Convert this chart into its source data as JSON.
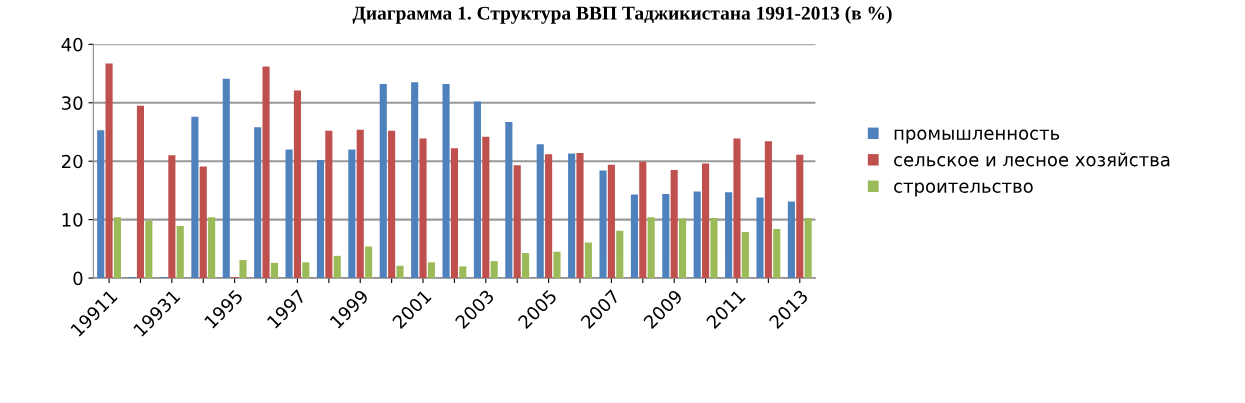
{
  "chart_data": {
    "type": "bar",
    "title": "Диаграмма 1. Структура ВВП Таджикистана 1991-2013 (в %)",
    "categories": [
      "19911",
      null,
      "19931",
      null,
      "1995",
      null,
      "1997",
      null,
      "1999",
      null,
      "2001",
      null,
      "2003",
      null,
      "2005",
      null,
      "2007",
      null,
      "2009",
      null,
      "2011",
      null,
      "2013"
    ],
    "series": [
      {
        "name": "промышленность",
        "color": "#4f81bd",
        "values": [
          25.3,
          0.2,
          0.2,
          27.6,
          34.1,
          25.8,
          22,
          20.2,
          22,
          33.2,
          33.5,
          33.2,
          30.2,
          26.7,
          22.9,
          21.3,
          18.4,
          14.3,
          14.4,
          14.8,
          14.7,
          13.8,
          13.1
        ]
      },
      {
        "name": "сельское и лесное хозяйства",
        "color": "#c0504d",
        "values": [
          36.7,
          29.5,
          21,
          19.1,
          0.2,
          36.2,
          32.1,
          25.2,
          25.4,
          25.2,
          23.9,
          22.2,
          24.2,
          19.3,
          21.2,
          21.4,
          19.4,
          19.9,
          18.5,
          19.6,
          23.9,
          23.4,
          21.1
        ]
      },
      {
        "name": "строительство",
        "color": "#9bbb59",
        "values": [
          10.4,
          9.8,
          8.9,
          10.4,
          3.1,
          2.6,
          2.7,
          3.8,
          5.4,
          2.1,
          2.7,
          2.0,
          2.9,
          4.3,
          4.5,
          6.1,
          8.1,
          10.4,
          10.2,
          10.3,
          7.9,
          8.4,
          10.3
        ]
      }
    ],
    "ylim": [
      0,
      40
    ],
    "yticks": [
      0,
      10,
      20,
      30,
      40
    ],
    "grid": "y",
    "legend": "right"
  }
}
